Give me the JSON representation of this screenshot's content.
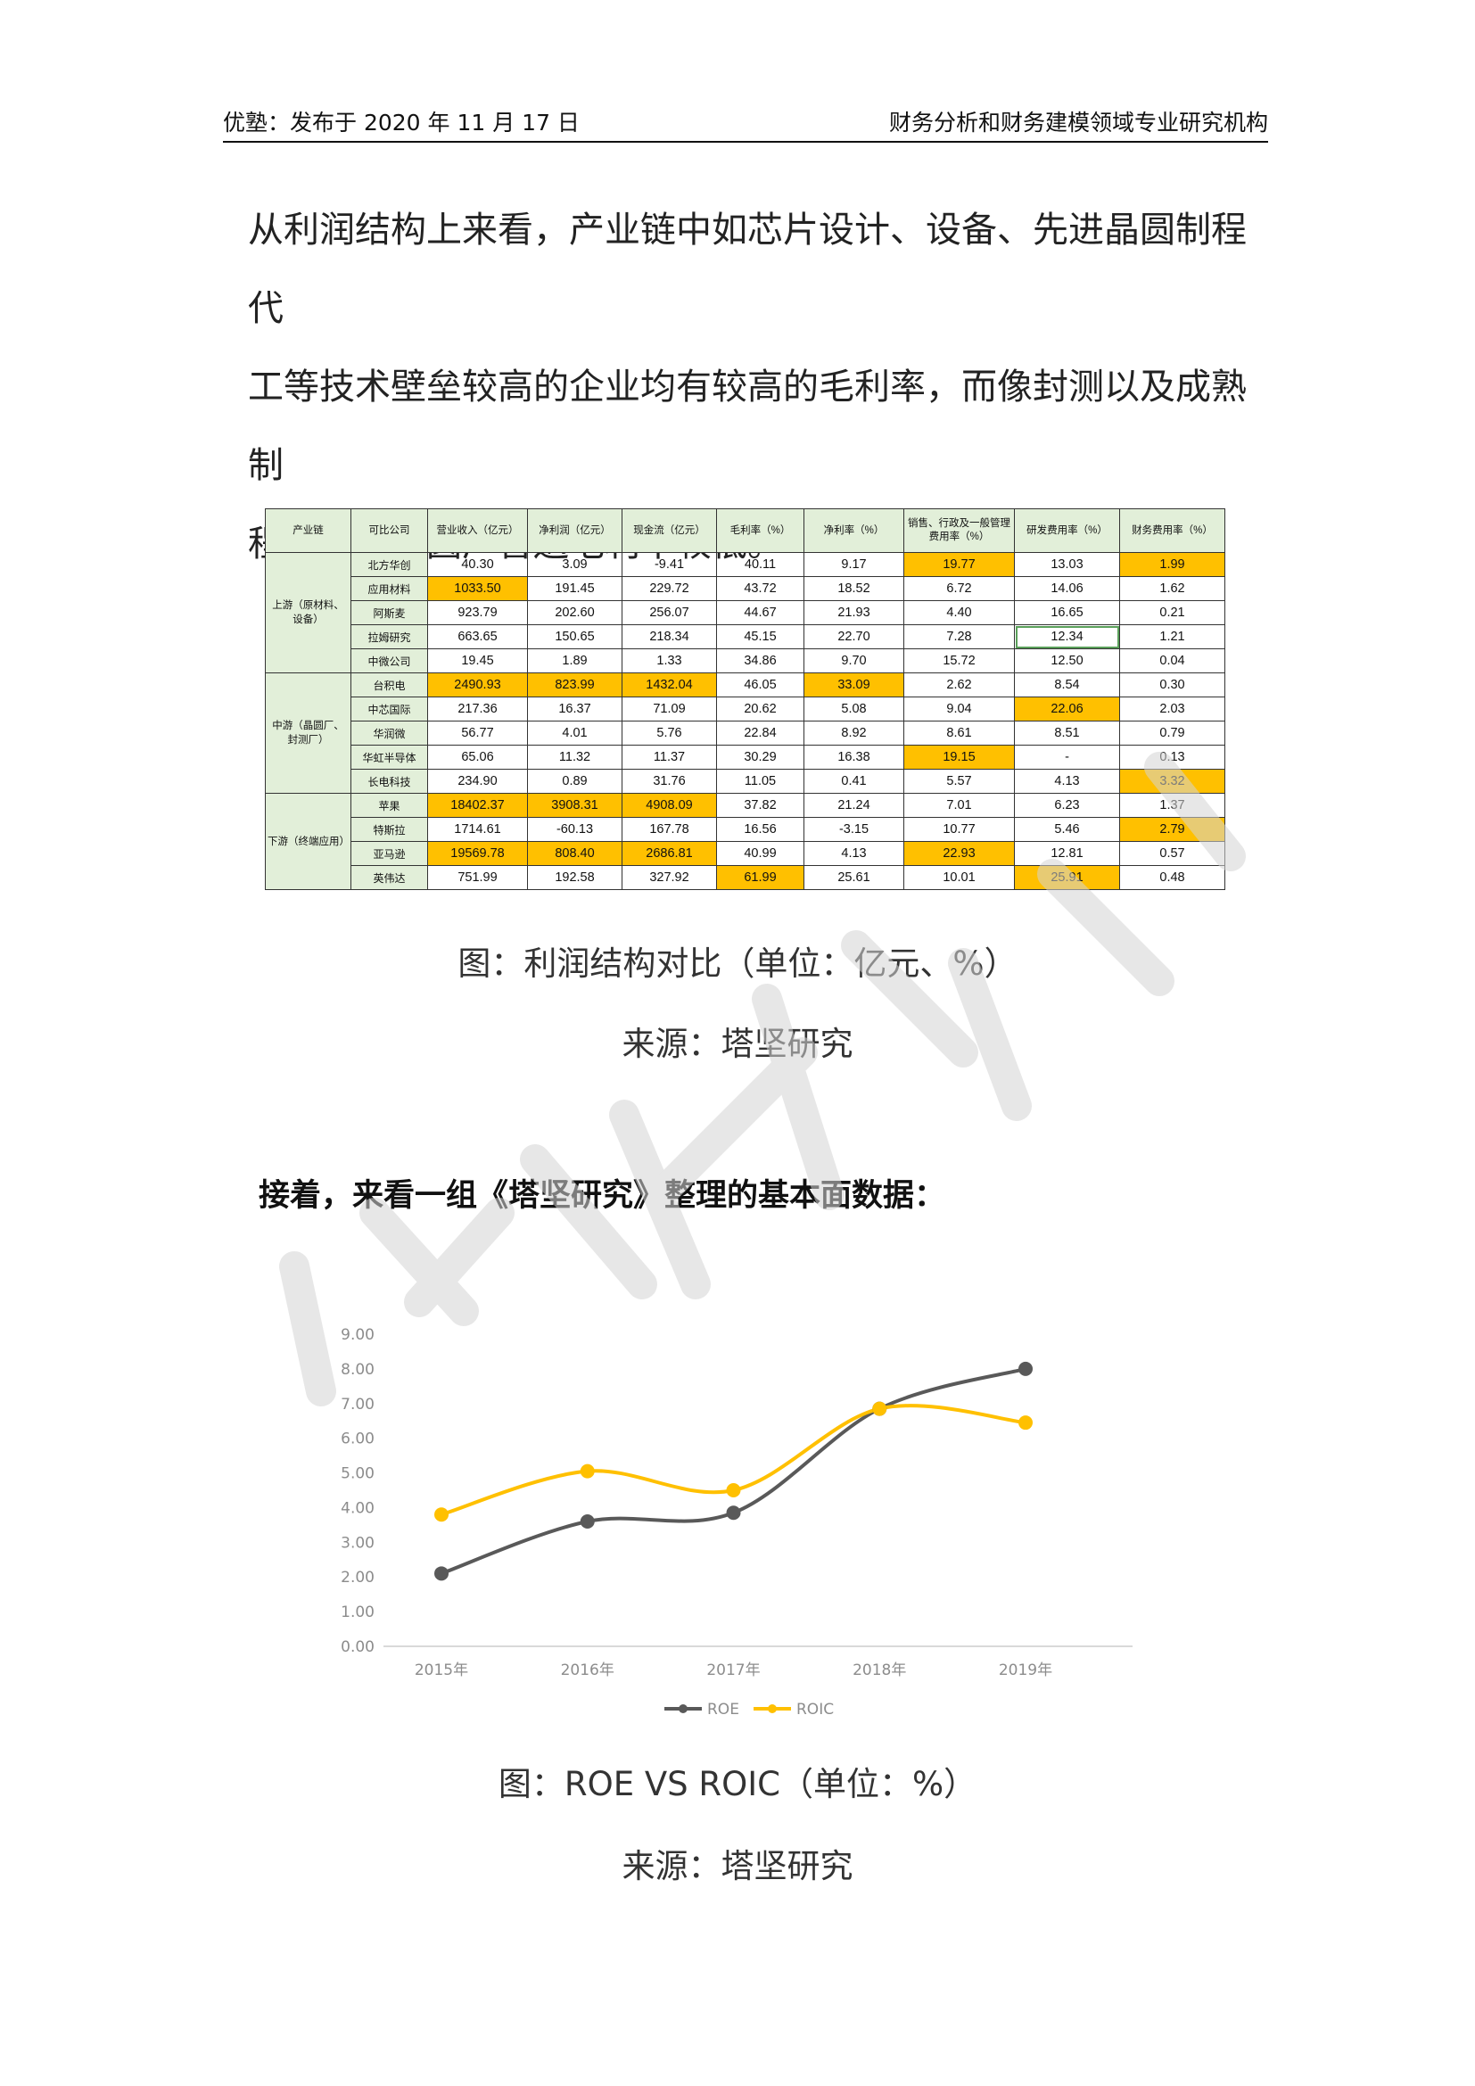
{
  "header": {
    "left": "优塾：发布于 2020 年 11 月 17 日",
    "right": "财务分析和财务建模领域专业研究机构"
  },
  "paragraph": [
    "从利润结构上来看，产业链中如芯片设计、设备、先进晶圆制程代",
    "工等技术壁垒较高的企业均有较高的毛利率，而像封测以及成熟制",
    "程代工的晶圆厂普遍毛利率较低。"
  ],
  "table": {
    "headers": [
      "产业链",
      "可比公司",
      "营业收入（亿元）",
      "净利润（亿元）",
      "现金流（亿元）",
      "毛利率（%）",
      "净利率（%）",
      "销售、行政及一般管理费用率（%）",
      "研发费用率（%）",
      "财务费用率（%）"
    ],
    "groups": [
      {
        "name": "上游（原材料、设备）",
        "rows": [
          {
            "company": "北方华创",
            "values": [
              "40.30",
              "3.09",
              "-9.41",
              "40.11",
              "9.17",
              "19.77",
              "13.03",
              "1.99"
            ],
            "highlight": [
              5,
              7
            ]
          },
          {
            "company": "应用材料",
            "values": [
              "1033.50",
              "191.45",
              "229.72",
              "43.72",
              "18.52",
              "6.72",
              "14.06",
              "1.62"
            ],
            "highlight": [
              0
            ]
          },
          {
            "company": "阿斯麦",
            "values": [
              "923.79",
              "202.60",
              "256.07",
              "44.67",
              "21.93",
              "4.40",
              "16.65",
              "0.21"
            ],
            "highlight": []
          },
          {
            "company": "拉姆研究",
            "values": [
              "663.65",
              "150.65",
              "218.34",
              "45.15",
              "22.70",
              "7.28",
              "12.34",
              "1.21"
            ],
            "highlight": [],
            "boxed": [
              6
            ]
          },
          {
            "company": "中微公司",
            "values": [
              "19.45",
              "1.89",
              "1.33",
              "34.86",
              "9.70",
              "15.72",
              "12.50",
              "0.04"
            ],
            "highlight": []
          }
        ]
      },
      {
        "name": "中游（晶圆厂、封测厂）",
        "rows": [
          {
            "company": "台积电",
            "values": [
              "2490.93",
              "823.99",
              "1432.04",
              "46.05",
              "33.09",
              "2.62",
              "8.54",
              "0.30"
            ],
            "highlight": [
              0,
              1,
              2,
              4
            ]
          },
          {
            "company": "中芯国际",
            "values": [
              "217.36",
              "16.37",
              "71.09",
              "20.62",
              "5.08",
              "9.04",
              "22.06",
              "2.03"
            ],
            "highlight": [
              6
            ]
          },
          {
            "company": "华润微",
            "values": [
              "56.77",
              "4.01",
              "5.76",
              "22.84",
              "8.92",
              "8.61",
              "8.51",
              "0.79"
            ],
            "highlight": []
          },
          {
            "company": "华虹半导体",
            "values": [
              "65.06",
              "11.32",
              "11.37",
              "30.29",
              "16.38",
              "19.15",
              "-",
              "0.13"
            ],
            "highlight": [
              5
            ]
          },
          {
            "company": "长电科技",
            "values": [
              "234.90",
              "0.89",
              "31.76",
              "11.05",
              "0.41",
              "5.57",
              "4.13",
              "3.32"
            ],
            "highlight": [
              7
            ]
          }
        ]
      },
      {
        "name": "下游（终端应用）",
        "rows": [
          {
            "company": "苹果",
            "values": [
              "18402.37",
              "3908.31",
              "4908.09",
              "37.82",
              "21.24",
              "7.01",
              "6.23",
              "1.37"
            ],
            "highlight": [
              0,
              1,
              2
            ]
          },
          {
            "company": "特斯拉",
            "values": [
              "1714.61",
              "-60.13",
              "167.78",
              "16.56",
              "-3.15",
              "10.77",
              "5.46",
              "2.79"
            ],
            "highlight": [
              7
            ]
          },
          {
            "company": "亚马逊",
            "values": [
              "19569.78",
              "808.40",
              "2686.81",
              "40.99",
              "4.13",
              "22.93",
              "12.81",
              "0.57"
            ],
            "highlight": [
              0,
              1,
              2,
              5
            ]
          },
          {
            "company": "英伟达",
            "values": [
              "751.99",
              "192.58",
              "327.92",
              "61.99",
              "25.61",
              "10.01",
              "25.91",
              "0.48"
            ],
            "highlight": [
              3,
              6
            ]
          }
        ]
      }
    ]
  },
  "caption1": "图：利润结构对比（单位：亿元、%）",
  "source1": "来源：塔坚研究",
  "subheading": "接着，来看一组《塔坚研究》整理的基本面数据：",
  "caption2": "图：ROE VS ROIC（单位：%）",
  "source2": "来源：塔坚研究",
  "colors": {
    "highlight": "#ffc000",
    "header_bg": "#e2efd9",
    "roe": "#595959",
    "roic": "#ffc000"
  },
  "chart_data": {
    "type": "line",
    "categories": [
      "2015年",
      "2016年",
      "2017年",
      "2018年",
      "2019年"
    ],
    "series": [
      {
        "name": "ROE",
        "values": [
          2.1,
          3.6,
          3.85,
          6.85,
          8.0
        ],
        "color": "#595959"
      },
      {
        "name": "ROIC",
        "values": [
          3.8,
          5.05,
          4.5,
          6.85,
          6.45
        ],
        "color": "#ffc000"
      }
    ],
    "yticks": [
      "0.00",
      "1.00",
      "2.00",
      "3.00",
      "4.00",
      "5.00",
      "6.00",
      "7.00",
      "8.00",
      "9.00"
    ],
    "ylim": [
      0,
      9
    ],
    "grid": false,
    "legend": "bottom"
  }
}
